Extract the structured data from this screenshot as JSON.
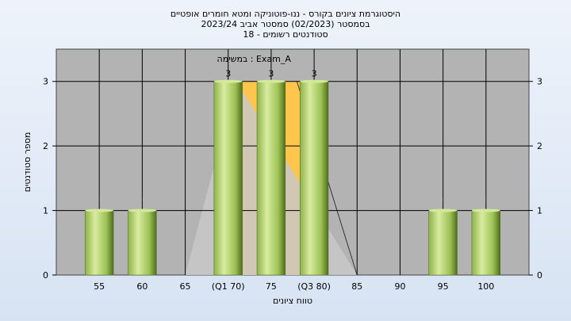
{
  "chart_data": {
    "type": "bar",
    "title_lines": [
      "היסטוגרמת ציונים בקורס - ננו-פוטוניקה ומטא חומרים אופטיים",
      "בסמסטר  (02/2023)  סמסטר אביב 2023/24",
      "סטודנטים רשומים - 18"
    ],
    "xlabel": "טווח ציונים",
    "ylabel": "מספר סטודנטים",
    "ylim": [
      0,
      3.5
    ],
    "yticks": [
      0,
      1,
      2,
      3
    ],
    "xlim": [
      50,
      105
    ],
    "x_ticks": [
      {
        "x": 55,
        "label": "55"
      },
      {
        "x": 60,
        "label": "60"
      },
      {
        "x": 65,
        "label": "65"
      },
      {
        "x": 70,
        "label": "(Q1 70)"
      },
      {
        "x": 75,
        "label": "75"
      },
      {
        "x": 80,
        "label": "(Q3 80)"
      },
      {
        "x": 85,
        "label": "85"
      },
      {
        "x": 90,
        "label": "90"
      },
      {
        "x": 95,
        "label": "95"
      },
      {
        "x": 100,
        "label": "100"
      }
    ],
    "bars": [
      {
        "x": 55,
        "value": 1,
        "label": ""
      },
      {
        "x": 60,
        "value": 1,
        "label": ""
      },
      {
        "x": 70,
        "value": 3,
        "label": "3"
      },
      {
        "x": 75,
        "value": 3,
        "label": "3"
      },
      {
        "x": 80,
        "value": 3,
        "label": "3"
      },
      {
        "x": 95,
        "value": 1,
        "label": ""
      },
      {
        "x": 100,
        "value": 1,
        "label": ""
      }
    ],
    "quartile_band": {
      "from": 70,
      "to": 80
    },
    "trend_triangle": {
      "left_x": 65,
      "peak_x": 71,
      "right_x": 85,
      "peak_value": 3
    },
    "annotation": "במשימה : Exam_A",
    "grid": true,
    "colors": {
      "plot_background": "#b3b3b3",
      "bar_light": "#d4e89a",
      "bar_mid": "#9dc155",
      "bar_dark": "#5a7a22",
      "quartile_band": "#ffc54d",
      "triangle": "#c8c8c8",
      "grid": "#000000"
    }
  }
}
